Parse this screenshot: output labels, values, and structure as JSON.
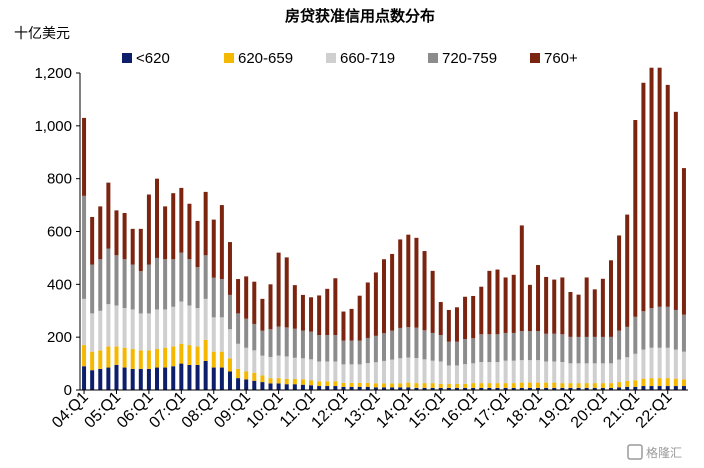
{
  "chart_data": {
    "type": "bar",
    "stacked": true,
    "title": "房贷获准信用点数分布",
    "unit_label": "十亿美元",
    "ylim": [
      0,
      1200
    ],
    "yticks": [
      0,
      200,
      400,
      600,
      800,
      1000,
      1200
    ],
    "ytick_labels": [
      "0",
      "200",
      "400",
      "600",
      "800",
      "1,000",
      "1,200"
    ],
    "xtick_labels": [
      "04:Q1",
      "05:Q1",
      "06:Q1",
      "07:Q1",
      "08:Q1",
      "09:Q1",
      "10:Q1",
      "11:Q1",
      "12:Q1",
      "13:Q1",
      "14:Q1",
      "15:Q1",
      "16:Q1",
      "17:Q1",
      "18:Q1",
      "19:Q1",
      "20:Q1",
      "21:Q1",
      "22:Q1"
    ],
    "legend_position": "top",
    "grid": false,
    "quarters": 75,
    "series": [
      {
        "name": "<620",
        "color": "#0d1f6b",
        "values": [
          90,
          75,
          80,
          85,
          95,
          85,
          80,
          80,
          80,
          85,
          85,
          90,
          100,
          95,
          95,
          110,
          85,
          85,
          70,
          45,
          40,
          35,
          30,
          25,
          25,
          22,
          22,
          20,
          18,
          15,
          15,
          15,
          12,
          12,
          12,
          12,
          10,
          10,
          10,
          10,
          10,
          8,
          8,
          8,
          8,
          8,
          8,
          8,
          8,
          8,
          8,
          8,
          8,
          8,
          8,
          8,
          8,
          8,
          8,
          8,
          8,
          8,
          8,
          8,
          8,
          8,
          10,
          12,
          12,
          15,
          15,
          15,
          15,
          15,
          15
        ]
      },
      {
        "name": "620-659",
        "color": "#f5b800",
        "values": [
          80,
          70,
          70,
          80,
          70,
          75,
          75,
          70,
          70,
          70,
          75,
          75,
          75,
          75,
          70,
          80,
          60,
          60,
          50,
          35,
          30,
          30,
          25,
          20,
          20,
          20,
          20,
          20,
          18,
          18,
          18,
          18,
          15,
          15,
          15,
          15,
          15,
          15,
          15,
          15,
          18,
          18,
          18,
          18,
          15,
          15,
          15,
          15,
          18,
          18,
          18,
          18,
          18,
          18,
          20,
          20,
          20,
          20,
          20,
          18,
          18,
          18,
          18,
          18,
          18,
          18,
          20,
          22,
          25,
          28,
          30,
          30,
          30,
          28,
          25
        ]
      },
      {
        "name": "660-719",
        "color": "#cfcfcf",
        "values": [
          175,
          145,
          150,
          160,
          155,
          150,
          150,
          140,
          140,
          150,
          145,
          150,
          160,
          150,
          145,
          155,
          130,
          130,
          110,
          95,
          90,
          85,
          75,
          80,
          85,
          85,
          80,
          80,
          80,
          75,
          75,
          75,
          70,
          70,
          70,
          75,
          80,
          85,
          90,
          95,
          95,
          95,
          90,
          85,
          85,
          70,
          70,
          75,
          75,
          80,
          80,
          80,
          85,
          85,
          85,
          85,
          85,
          80,
          80,
          80,
          75,
          75,
          75,
          75,
          75,
          75,
          85,
          90,
          100,
          110,
          115,
          115,
          115,
          110,
          105
        ]
      },
      {
        "name": "720-759",
        "color": "#8c8c8c",
        "values": [
          390,
          185,
          195,
          210,
          190,
          185,
          170,
          160,
          185,
          195,
          190,
          180,
          185,
          175,
          155,
          165,
          150,
          145,
          130,
          115,
          110,
          100,
          95,
          105,
          110,
          110,
          110,
          105,
          105,
          100,
          100,
          100,
          90,
          90,
          90,
          95,
          100,
          105,
          110,
          115,
          115,
          115,
          110,
          105,
          100,
          90,
          90,
          95,
          95,
          105,
          105,
          105,
          105,
          105,
          110,
          110,
          110,
          105,
          105,
          105,
          100,
          100,
          100,
          100,
          100,
          100,
          110,
          115,
          140,
          145,
          150,
          155,
          155,
          150,
          140
        ]
      },
      {
        "name": "760+",
        "color": "#7b2410",
        "values": [
          295,
          180,
          200,
          250,
          170,
          175,
          135,
          160,
          265,
          300,
          200,
          250,
          245,
          210,
          175,
          240,
          220,
          280,
          200,
          130,
          160,
          160,
          120,
          170,
          280,
          265,
          165,
          135,
          130,
          150,
          175,
          215,
          110,
          120,
          170,
          210,
          240,
          280,
          290,
          335,
          350,
          340,
          300,
          235,
          125,
          120,
          130,
          160,
          160,
          180,
          240,
          245,
          210,
          220,
          400,
          175,
          250,
          215,
          205,
          215,
          170,
          160,
          225,
          180,
          220,
          290,
          360,
          425,
          745,
          865,
          910,
          905,
          840,
          750,
          555
        ]
      }
    ]
  },
  "watermark": "格隆汇"
}
